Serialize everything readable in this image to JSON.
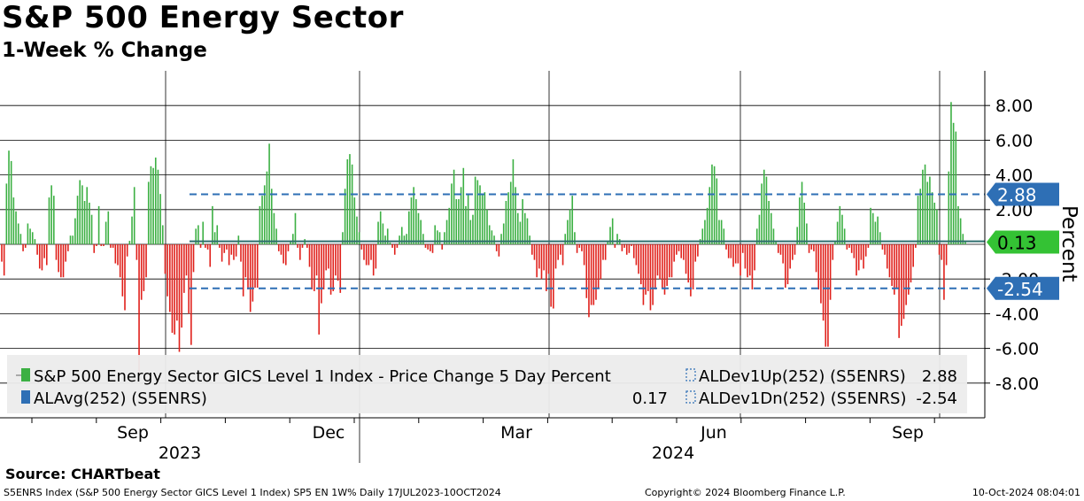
{
  "header": {
    "title": "S&P 500 Energy Sector",
    "subtitle": "1-Week % Change"
  },
  "footer": {
    "source": "Source: CHARTbeat",
    "ticker_info": "S5ENRS Index (S&P 500 Energy Sector GICS Level 1 Index) SP5 EN 1W% Daily 17JUL2023-10OCT2024",
    "copyright": "Copyright© 2024 Bloomberg Finance L.P.",
    "timestamp": "10-Oct-2024 08:04:01"
  },
  "colors": {
    "positive": "#3cb043",
    "negative": "#e0201b",
    "avg_tag": "#2e6fb5",
    "last_tag": "#34c234",
    "legend_bg": "#ececec",
    "dash_line": "#2e6fb5"
  },
  "chart_data": {
    "type": "bar",
    "title": "S&P 500 Energy Sector",
    "subtitle": "1-Week % Change",
    "ylabel": "Percent",
    "ylim": [
      -10,
      10
    ],
    "y_ticks": [
      "8.00",
      "6.00",
      "4.00",
      "2.00",
      "-2.00",
      "-4.00",
      "-6.00",
      "-8.00"
    ],
    "y_tick_values": [
      8,
      6,
      4,
      2,
      -2,
      -4,
      -6,
      -8
    ],
    "x_month_labels": [
      "Sep",
      "Dec",
      "Mar",
      "Jun",
      "Sep"
    ],
    "x_year_labels": [
      "2023",
      "2024"
    ],
    "date_range": [
      "2023-07-17",
      "2024-10-10"
    ],
    "values": [
      -1.0,
      -1.8,
      3.5,
      5.4,
      4.8,
      2.7,
      1.9,
      1.2,
      0.6,
      -0.4,
      -0.2,
      1.2,
      0.9,
      0.7,
      0.3,
      -0.6,
      -1.4,
      -1.5,
      -0.8,
      -1.2,
      2.7,
      3.4,
      2.8,
      -0.9,
      -1.6,
      -1.9,
      -1.9,
      -1.0,
      -0.4,
      0.5,
      0.5,
      1.5,
      2.8,
      3.7,
      3.4,
      2.5,
      3.3,
      2.4,
      1.7,
      -0.5,
      -0.1,
      2.2,
      -0.1,
      -0.1,
      1.3,
      1.9,
      -0.2,
      -0.2,
      -1.1,
      -1.2,
      -1.9,
      -3.0,
      -3.8,
      -0.7,
      0.2,
      1.6,
      3.3,
      -0.9,
      -7.5,
      -3.2,
      -2.7,
      -1.9,
      3.6,
      4.5,
      4.4,
      5.0,
      4.3,
      2.9,
      1.1,
      -1.7,
      -3.0,
      -3.9,
      -5.1,
      -5.2,
      -4.4,
      -6.2,
      -4.8,
      -2.8,
      -1.8,
      -4.0,
      -5.8,
      -1.6,
      0.9,
      1.1,
      -0.2,
      1.3,
      -0.2,
      -0.3,
      -1.3,
      2.2,
      0.7,
      1.1,
      -0.2,
      -1.0,
      -0.5,
      -0.3,
      -1.2,
      -0.6,
      -0.9,
      -0.7,
      0.5,
      -1.0,
      -3.0,
      -1.9,
      -2.6,
      -3.9,
      -3.3,
      -2.5,
      -2.5,
      2.2,
      2.8,
      3.4,
      4.2,
      5.8,
      3.2,
      1.8,
      0.9,
      -0.4,
      -0.6,
      -1.1,
      -1.2,
      -0.4,
      0.2,
      0.6,
      1.8,
      -0.2,
      -0.9,
      -0.2,
      0.3,
      -0.2,
      -1.3,
      -2.6,
      -2.7,
      -1.8,
      -5.2,
      -3.4,
      -2.6,
      -1.5,
      -1.4,
      -2.9,
      -2.7,
      -1.8,
      -2.1,
      -2.8,
      0.7,
      3.2,
      4.9,
      5.2,
      4.6,
      2.7,
      1.6,
      0.7,
      -0.3,
      -0.9,
      -1.2,
      -1.2,
      -0.9,
      -1.8,
      -1.4,
      1.3,
      1.9,
      1.2,
      0.5,
      0.9,
      0.1,
      -0.2,
      -0.6,
      -0.2,
      0.5,
      1.0,
      0.5,
      0.6,
      1.9,
      2.7,
      3.3,
      2.6,
      1.8,
      1.4,
      0.6,
      -0.2,
      -0.3,
      -0.4,
      -0.5,
      1.1,
      0.8,
      0.7,
      -0.3,
      0.7,
      1.4,
      2.1,
      3.5,
      4.3,
      2.6,
      2.6,
      3.3,
      4.4,
      2.2,
      2.9,
      1.4,
      1.7,
      3.9,
      3.7,
      3.4,
      2.9,
      3.0,
      2.0,
      1.1,
      0.8,
      0.5,
      -0.4,
      -0.7,
      0.6,
      1.2,
      2.5,
      3.0,
      3.6,
      4.9,
      3.3,
      1.8,
      1.3,
      2.6,
      1.8,
      1.5,
      0.5,
      -0.6,
      -0.9,
      -1.9,
      -1.4,
      -2.0,
      -1.5,
      -2.7,
      -1.7,
      -3.6,
      -3.7,
      -1.4,
      -0.9,
      -0.6,
      -1.2,
      0.6,
      1.4,
      2.0,
      2.8,
      0.7,
      -0.5,
      -0.2,
      -0.4,
      -1.2,
      -3.1,
      -4.2,
      -3.5,
      -3.5,
      -3.2,
      -2.5,
      -2.0,
      -0.9,
      -0.9,
      0.2,
      1.0,
      1.5,
      -0.2,
      0.6,
      0.3,
      -0.4,
      -0.2,
      -0.6,
      -0.5,
      -0.1,
      -0.8,
      -1.2,
      -1.7,
      -2.3,
      -3.5,
      -2.9,
      -2.7,
      -3.8,
      -3.5,
      -2.6,
      -1.8,
      -2.0,
      -2.5,
      -2.9,
      -2.4,
      -1.9,
      -1.9,
      -1.0,
      -0.6,
      -0.4,
      -0.8,
      -0.9,
      -1.7,
      -2.2,
      -3.0,
      -2.6,
      -1.0,
      -0.7,
      0.3,
      0.9,
      1.4,
      2.1,
      3.3,
      4.6,
      4.5,
      3.8,
      1.4,
      1.4,
      0.9,
      -0.3,
      -0.8,
      -0.8,
      -1.3,
      -1.1,
      -1.1,
      -1.8,
      -0.5,
      -1.4,
      -1.9,
      -1.8,
      -2.6,
      -1.5,
      0.9,
      1.7,
      3.5,
      4.3,
      3.9,
      2.5,
      1.8,
      0.9,
      0.2,
      -0.5,
      -0.6,
      -1.1,
      -2.5,
      -2.3,
      -1.4,
      -0.9,
      -0.6,
      1.0,
      2.7,
      3.6,
      2.4,
      1.2,
      -0.5,
      -0.3,
      -0.4,
      -1.6,
      -2.6,
      -3.4,
      -4.4,
      -5.9,
      -5.9,
      -3.2,
      -0.9,
      0.2,
      1.3,
      2.2,
      1.7,
      0.9,
      -0.3,
      -0.2,
      -0.5,
      -0.8,
      -1.8,
      -1.5,
      -0.9,
      -1.4,
      -0.7,
      -0.2,
      2.1,
      1.8,
      1.3,
      1.6,
      0.7,
      -0.3,
      -0.6,
      -1.4,
      -1.9,
      -2.4,
      -2.9,
      -2.5,
      -5.4,
      -4.7,
      -4.3,
      -3.5,
      -2.9,
      -2.2,
      -1.3,
      -0.2,
      2.8,
      3.2,
      4.3,
      4.6,
      3.6,
      3.9,
      3.0,
      2.4,
      2.0,
      -0.6,
      -0.9,
      -3.2,
      -1.2,
      4.2,
      8.2,
      7.0,
      6.5,
      2.2,
      1.5,
      0.6,
      0.13
    ]
  },
  "overlays": {
    "dev_up": {
      "label": "ALDev1Up(252) (S5ENRS)",
      "value": "2.88",
      "level": 2.88
    },
    "dev_dn": {
      "label": "ALDev1Dn(252) (S5ENRS)",
      "value": "-2.54",
      "level": -2.54
    },
    "avg": {
      "label": "ALAvg(252) (S5ENRS)",
      "value": "0.17",
      "level": 0.17
    },
    "last": {
      "value": "0.13",
      "level": 0.13
    }
  },
  "legend": {
    "series_label": "S&P 500 Energy Sector GICS Level 1 Index - Price Change 5 Day Percent"
  }
}
